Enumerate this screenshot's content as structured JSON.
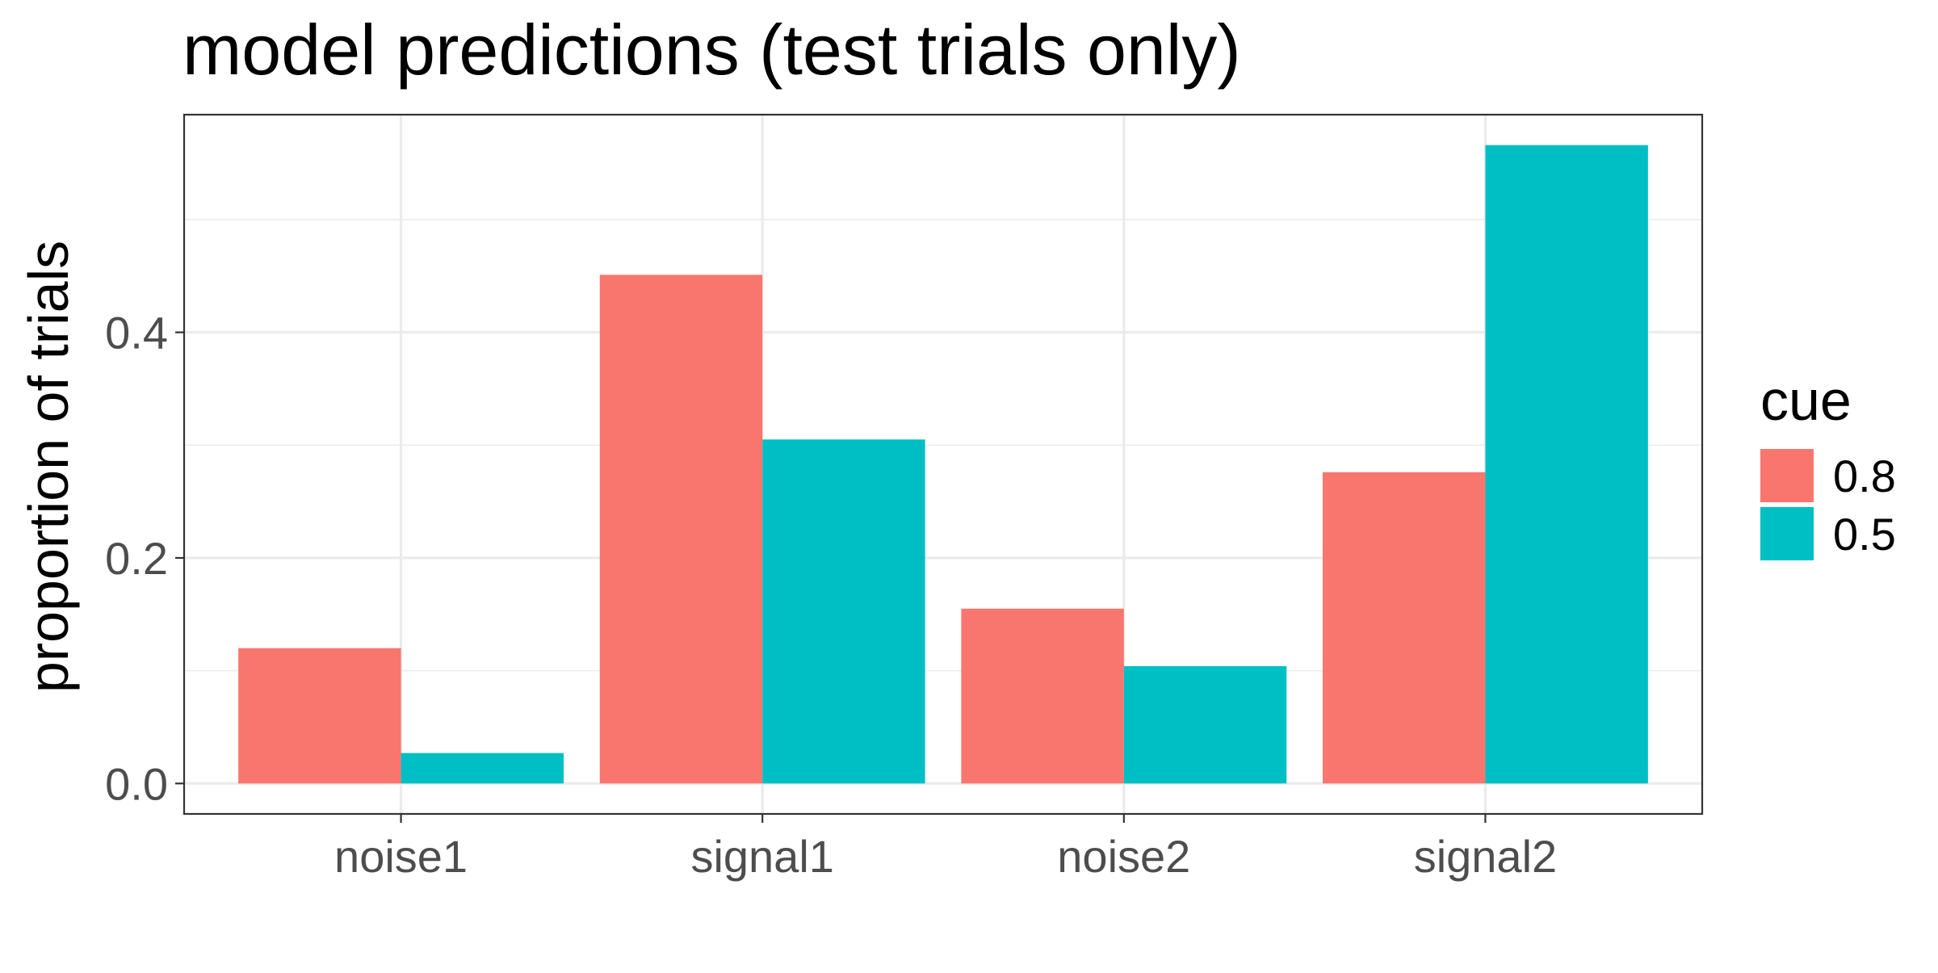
{
  "chart_data": {
    "type": "bar",
    "title": "model predictions (test trials only)",
    "xlabel": "",
    "ylabel": "proportion of trials",
    "categories": [
      "noise1",
      "signal1",
      "noise2",
      "signal2"
    ],
    "series": [
      {
        "name": "0.8",
        "color": "#F8766D",
        "values": [
          0.12,
          0.451,
          0.155,
          0.276
        ]
      },
      {
        "name": "0.5",
        "color": "#00BFC4",
        "values": [
          0.027,
          0.305,
          0.104,
          0.566
        ]
      }
    ],
    "ylim": [
      -0.027,
      0.593
    ],
    "yticks": [
      0.0,
      0.2,
      0.4
    ],
    "ytick_labels": [
      "0.0",
      "0.2",
      "0.4"
    ],
    "grid": true,
    "legend": {
      "title": "cue",
      "position": "right"
    },
    "colors": {
      "background": "#ffffff",
      "grid": "#ebebeb",
      "border": "#333333",
      "tick_text": "#4d4d4d"
    }
  }
}
